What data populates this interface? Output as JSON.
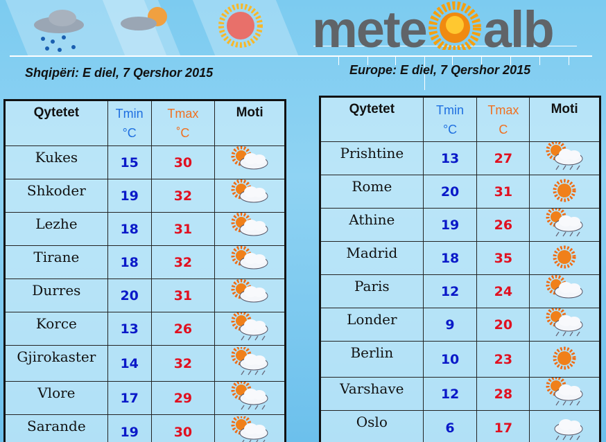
{
  "logo": {
    "text_left": "mete",
    "text_right": "alb"
  },
  "albania": {
    "date": "Shqipëri: E  diel, 7 Qershor 2015",
    "headers": {
      "city": "Qytetet",
      "tmin": "Tmin",
      "tmin_unit": "°C",
      "tmax": "Tmax",
      "tmax_unit": "˚C",
      "weather": "Moti"
    },
    "rows": [
      {
        "city": "Kukes",
        "tmin": "15",
        "tmax": "30",
        "icon": "partly-cloudy"
      },
      {
        "city": "Shkoder",
        "tmin": "19",
        "tmax": "32",
        "icon": "partly-cloudy"
      },
      {
        "city": "Lezhe",
        "tmin": "18",
        "tmax": "31",
        "icon": "partly-cloudy"
      },
      {
        "city": "Tirane",
        "tmin": "18",
        "tmax": "32",
        "icon": "partly-cloudy"
      },
      {
        "city": "Durres",
        "tmin": "20",
        "tmax": "31",
        "icon": "partly-cloudy"
      },
      {
        "city": "Korce",
        "tmin": "13",
        "tmax": "26",
        "icon": "sun-cloud-rain"
      },
      {
        "city": "Gjirokaster",
        "tmin": "14",
        "tmax": "32",
        "icon": "sun-cloud-rain"
      },
      {
        "city": "Vlore",
        "tmin": "17",
        "tmax": "29",
        "icon": "sun-cloud-rain"
      },
      {
        "city": "Sarande",
        "tmin": "19",
        "tmax": "30",
        "icon": "sun-cloud-rain"
      }
    ]
  },
  "europe": {
    "date": "Europe: E  diel, 7 Qershor 2015",
    "headers": {
      "city": "Qytetet",
      "tmin": "Tmin",
      "tmin_unit": "°C",
      "tmax": "Tmax",
      "tmax_unit": "C",
      "weather": "Moti"
    },
    "rows": [
      {
        "city": "Prishtine",
        "tmin": "13",
        "tmax": "27",
        "icon": "sun-cloud-rain"
      },
      {
        "city": "Rome",
        "tmin": "20",
        "tmax": "31",
        "icon": "sunny"
      },
      {
        "city": "Athine",
        "tmin": "19",
        "tmax": "26",
        "icon": "sun-cloud-rain"
      },
      {
        "city": "Madrid",
        "tmin": "18",
        "tmax": "35",
        "icon": "sunny"
      },
      {
        "city": "Paris",
        "tmin": "12",
        "tmax": "24",
        "icon": "partly-cloudy"
      },
      {
        "city": "Londer",
        "tmin": "9",
        "tmax": "20",
        "icon": "sun-cloud-rain"
      },
      {
        "city": "Berlin",
        "tmin": "10",
        "tmax": "23",
        "icon": "sunny"
      },
      {
        "city": "Varshave",
        "tmin": "12",
        "tmax": "28",
        "icon": "sun-cloud-rain"
      },
      {
        "city": "Oslo",
        "tmin": "6",
        "tmax": "17",
        "icon": "cloud-rain"
      }
    ]
  },
  "colors": {
    "tmin_header": "#1e6fe0",
    "tmax_header": "#f07020",
    "tmin_value": "#0a19c8",
    "tmax_value": "#e01020",
    "background": "#8fd3f3"
  }
}
